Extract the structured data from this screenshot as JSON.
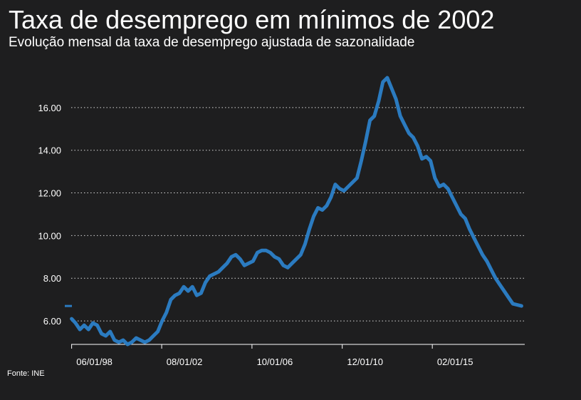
{
  "colors": {
    "background": "#1e1e1f",
    "line": "#2b7bc0",
    "grid": "#d8d8d8",
    "text": "#ffffff"
  },
  "source_label": "Fonte: INE",
  "chart_data": {
    "type": "line",
    "title": "Taxa de desemprego em mínimos de 2002",
    "subtitle": "Evolução mensal da taxa de desemprego ajustada de sazonalidade",
    "ylim": [
      4.9,
      17.7
    ],
    "xlim": [
      1998.4,
      2019.35
    ],
    "grid": true,
    "y_ticks": [
      {
        "value": 6,
        "label": "6.00"
      },
      {
        "value": 8,
        "label": "8.00"
      },
      {
        "value": 10,
        "label": "10.00"
      },
      {
        "value": 12,
        "label": "12.00"
      },
      {
        "value": 14,
        "label": "14.00"
      },
      {
        "value": 16,
        "label": "16.00"
      }
    ],
    "x_ticks": [
      {
        "value": 1998.42,
        "label": "06/01/98"
      },
      {
        "value": 2002.58,
        "label": "08/01/02"
      },
      {
        "value": 2006.75,
        "label": "10/01/06"
      },
      {
        "value": 2010.92,
        "label": "12/01/10"
      },
      {
        "value": 2015.08,
        "label": "02/01/15"
      }
    ],
    "reference_marker": {
      "value": 6.7
    },
    "series": [
      {
        "name": "",
        "x": [
          1998.42,
          1998.6,
          1998.8,
          1999.0,
          1999.2,
          1999.4,
          1999.6,
          1999.8,
          2000.0,
          2000.2,
          2000.4,
          2000.6,
          2000.8,
          2001.0,
          2001.2,
          2001.4,
          2001.6,
          2001.8,
          2002.0,
          2002.2,
          2002.4,
          2002.6,
          2002.8,
          2003.0,
          2003.2,
          2003.4,
          2003.6,
          2003.8,
          2004.0,
          2004.2,
          2004.4,
          2004.6,
          2004.8,
          2005.0,
          2005.2,
          2005.4,
          2005.6,
          2005.8,
          2006.0,
          2006.2,
          2006.4,
          2006.6,
          2006.8,
          2007.0,
          2007.2,
          2007.4,
          2007.6,
          2007.8,
          2008.0,
          2008.2,
          2008.4,
          2008.6,
          2008.8,
          2009.0,
          2009.2,
          2009.4,
          2009.6,
          2009.8,
          2010.0,
          2010.2,
          2010.4,
          2010.6,
          2010.8,
          2011.0,
          2011.2,
          2011.4,
          2011.6,
          2011.8,
          2012.0,
          2012.2,
          2012.4,
          2012.6,
          2012.8,
          2013.0,
          2013.2,
          2013.4,
          2013.6,
          2013.8,
          2014.0,
          2014.2,
          2014.4,
          2014.6,
          2014.8,
          2015.0,
          2015.2,
          2015.4,
          2015.6,
          2015.8,
          2016.0,
          2016.2,
          2016.4,
          2016.6,
          2016.8,
          2017.0,
          2017.2,
          2017.4,
          2017.6,
          2017.8,
          2018.0,
          2018.2,
          2018.4,
          2018.6,
          2018.8,
          2019.0,
          2019.2
        ],
        "y": [
          6.1,
          5.9,
          5.6,
          5.8,
          5.6,
          5.9,
          5.8,
          5.4,
          5.3,
          5.5,
          5.1,
          5.0,
          5.1,
          4.9,
          5.0,
          5.2,
          5.1,
          5.0,
          5.1,
          5.3,
          5.5,
          6.0,
          6.4,
          7.0,
          7.2,
          7.3,
          7.6,
          7.4,
          7.6,
          7.2,
          7.3,
          7.8,
          8.1,
          8.2,
          8.3,
          8.5,
          8.7,
          9.0,
          9.1,
          8.9,
          8.6,
          8.7,
          8.8,
          9.2,
          9.3,
          9.3,
          9.2,
          9.0,
          8.9,
          8.6,
          8.5,
          8.7,
          8.9,
          9.1,
          9.6,
          10.3,
          10.9,
          11.3,
          11.2,
          11.4,
          11.8,
          12.4,
          12.2,
          12.1,
          12.3,
          12.5,
          12.7,
          13.5,
          14.4,
          15.4,
          15.6,
          16.3,
          17.2,
          17.4,
          16.9,
          16.4,
          15.6,
          15.2,
          14.8,
          14.6,
          14.2,
          13.6,
          13.7,
          13.5,
          12.7,
          12.3,
          12.4,
          12.2,
          11.8,
          11.4,
          11.0,
          10.8,
          10.3,
          9.9,
          9.5,
          9.1,
          8.8,
          8.4,
          8.0,
          7.7,
          7.4,
          7.1,
          6.8,
          6.75,
          6.7
        ]
      }
    ]
  }
}
